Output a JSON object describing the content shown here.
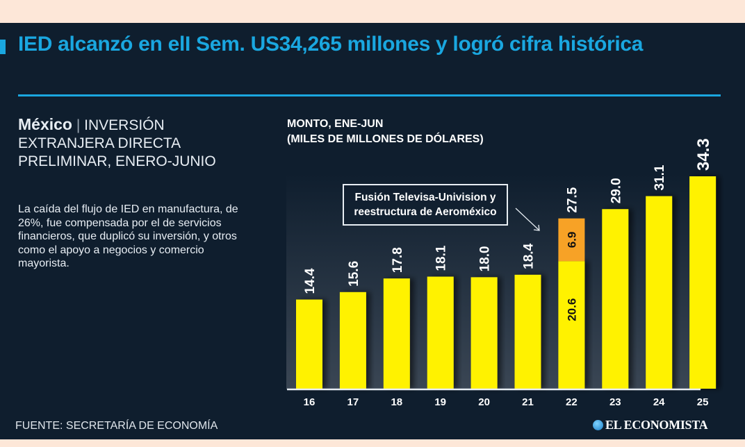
{
  "header": {
    "title": "IED alcanzó en elI Sem. US34,265 millones y logró cifra histórica"
  },
  "subtitle": {
    "country": "México",
    "separator": "|",
    "text": "INVERSIÓN EXTRANJERA DIRECTA PRELIMINAR, ENERO-JUNIO"
  },
  "description": "La caída del flujo de IED en manufactura, de 26%, fue compensada por el de servicios financieros, que duplicó su inversión, y otros como el apoyo a negocios y comercio mayorista.",
  "footer": {
    "source": "FUENTE: SECRETARÍA DE ECONOMÍA",
    "brand": "EL ECONOMISTA"
  },
  "colors": {
    "background": "#0f1e2e",
    "accent": "#1aa7e0",
    "bar": "#fff200",
    "highlight": "#f7a226"
  },
  "chart_data": {
    "type": "bar",
    "title": "MONTO, ENE-JUN",
    "ylabel": "(MILES DE MILLONES DE DÓLARES)",
    "xlabel": "",
    "categories": [
      "16",
      "17",
      "18",
      "19",
      "20",
      "21",
      "22",
      "23",
      "24",
      "25"
    ],
    "values": [
      14.4,
      15.6,
      17.8,
      18.1,
      18.0,
      18.4,
      27.5,
      29.0,
      31.1,
      34.3
    ],
    "labels": [
      "14.4",
      "15.6",
      "17.8",
      "18.1",
      "18.0",
      "18.4",
      "27.5",
      "29.0",
      "31.1",
      "34.3"
    ],
    "stacked_segments": {
      "category": "22",
      "base": {
        "value": 20.6,
        "label": "20.6"
      },
      "extra": {
        "value": 6.9,
        "label": "6.9"
      }
    },
    "annotation": {
      "text_line1": "Fusión Televisa-Univision y",
      "text_line2": "reestructura de Aeroméxico",
      "target": "22"
    },
    "ylim": [
      0,
      34.3
    ],
    "grid": false,
    "legend": "none"
  }
}
